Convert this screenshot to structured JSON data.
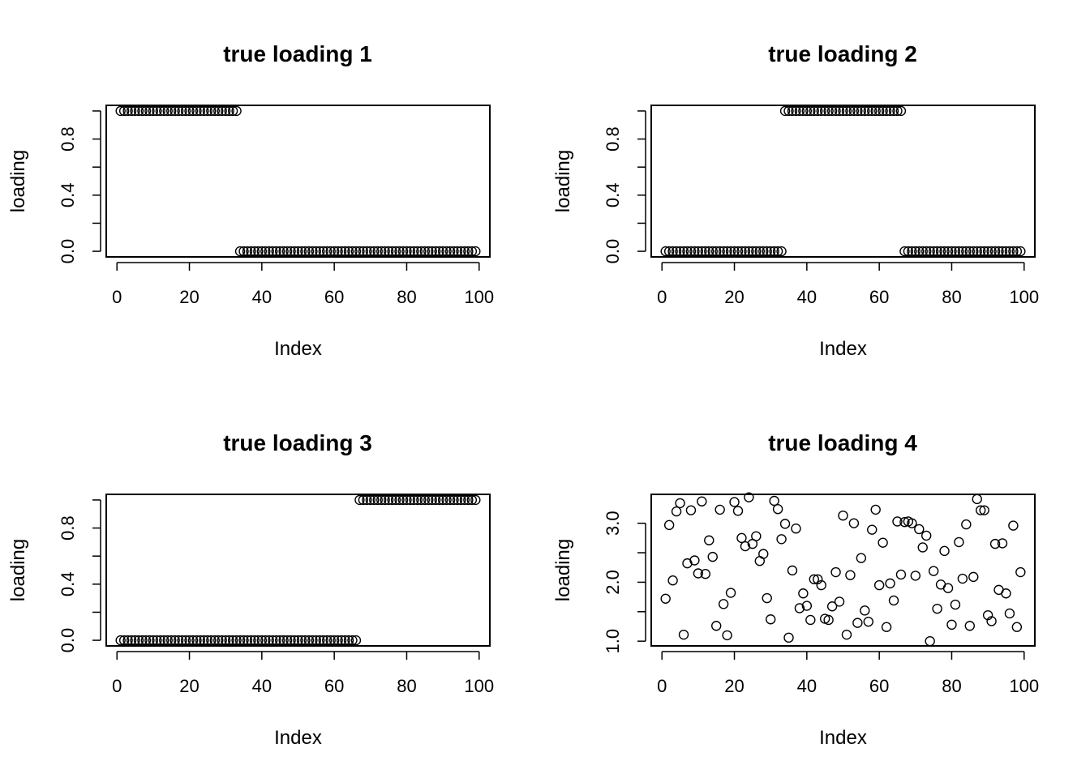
{
  "chart_data": [
    {
      "type": "scatter",
      "title": "true loading 1",
      "xlabel": "Index",
      "ylabel": "loading",
      "xlim": [
        -2.96,
        102.96
      ],
      "ylim": [
        -0.04,
        1.04
      ],
      "x_ticks": [
        "0",
        "20",
        "40",
        "60",
        "80",
        "100"
      ],
      "y_ticks": [
        "0.0",
        "0.4",
        "0.8"
      ],
      "y_tick_values": [
        0.0,
        0.2,
        0.4,
        0.6,
        0.8,
        1.0
      ],
      "segments": [
        {
          "from": 1,
          "to": 33,
          "value": 1
        },
        {
          "from": 34,
          "to": 99,
          "value": 0
        }
      ]
    },
    {
      "type": "scatter",
      "title": "true loading 2",
      "xlabel": "Index",
      "ylabel": "loading",
      "xlim": [
        -2.96,
        102.96
      ],
      "ylim": [
        -0.04,
        1.04
      ],
      "x_ticks": [
        "0",
        "20",
        "40",
        "60",
        "80",
        "100"
      ],
      "y_ticks": [
        "0.0",
        "0.4",
        "0.8"
      ],
      "y_tick_values": [
        0.0,
        0.2,
        0.4,
        0.6,
        0.8,
        1.0
      ],
      "segments": [
        {
          "from": 1,
          "to": 33,
          "value": 0
        },
        {
          "from": 34,
          "to": 66,
          "value": 1
        },
        {
          "from": 67,
          "to": 99,
          "value": 0
        }
      ]
    },
    {
      "type": "scatter",
      "title": "true loading 3",
      "xlabel": "Index",
      "ylabel": "loading",
      "xlim": [
        -2.96,
        102.96
      ],
      "ylim": [
        -0.04,
        1.04
      ],
      "x_ticks": [
        "0",
        "20",
        "40",
        "60",
        "80",
        "100"
      ],
      "y_ticks": [
        "0.0",
        "0.4",
        "0.8"
      ],
      "y_tick_values": [
        0.0,
        0.2,
        0.4,
        0.6,
        0.8,
        1.0
      ],
      "segments": [
        {
          "from": 1,
          "to": 66,
          "value": 0
        },
        {
          "from": 67,
          "to": 99,
          "value": 1
        }
      ]
    },
    {
      "type": "scatter",
      "title": "true loading 4",
      "xlabel": "Index",
      "ylabel": "loading",
      "xlim": [
        -2.96,
        102.96
      ],
      "ylim": [
        0.92,
        3.49
      ],
      "x_ticks": [
        "0",
        "20",
        "40",
        "60",
        "80",
        "100"
      ],
      "y_ticks": [
        "1.0",
        "2.0",
        "3.0"
      ],
      "y_tick_values": [
        1.0,
        1.5,
        2.0,
        2.5,
        3.0
      ],
      "x": [
        1,
        2,
        3,
        4,
        5,
        6,
        7,
        8,
        9,
        10,
        11,
        12,
        13,
        14,
        15,
        16,
        17,
        18,
        19,
        20,
        21,
        22,
        23,
        24,
        25,
        26,
        27,
        28,
        29,
        30,
        31,
        32,
        33,
        34,
        35,
        36,
        37,
        38,
        39,
        40,
        41,
        42,
        43,
        44,
        45,
        46,
        47,
        48,
        49,
        50,
        51,
        52,
        53,
        54,
        55,
        56,
        57,
        58,
        59,
        60,
        61,
        62,
        63,
        64,
        65,
        66,
        67,
        68,
        69,
        70,
        71,
        72,
        73,
        74,
        75,
        76,
        77,
        78,
        79,
        80,
        81,
        82,
        83,
        84,
        85,
        86,
        87,
        88,
        89,
        90,
        91,
        92,
        93,
        94,
        95,
        96,
        97,
        98,
        99
      ],
      "y": [
        1.72,
        2.97,
        2.03,
        3.2,
        3.34,
        1.11,
        2.32,
        3.22,
        2.37,
        2.15,
        3.37,
        2.14,
        2.71,
        2.43,
        1.26,
        3.23,
        1.63,
        1.1,
        1.82,
        3.36,
        3.21,
        2.75,
        2.61,
        3.44,
        2.65,
        2.78,
        2.36,
        2.48,
        1.73,
        1.37,
        3.38,
        3.24,
        2.73,
        2.99,
        1.06,
        2.2,
        2.91,
        1.56,
        1.81,
        1.6,
        1.36,
        2.05,
        2.05,
        1.95,
        1.38,
        1.36,
        1.59,
        2.17,
        1.67,
        3.13,
        1.11,
        2.12,
        3.0,
        1.31,
        2.41,
        1.52,
        1.33,
        2.89,
        3.23,
        1.95,
        2.67,
        1.24,
        1.98,
        1.69,
        3.03,
        2.13,
        3.02,
        3.03,
        3.0,
        2.11,
        2.9,
        2.59,
        2.79,
        1.0,
        2.19,
        1.55,
        1.96,
        2.53,
        1.9,
        1.28,
        1.62,
        2.68,
        2.06,
        2.98,
        1.26,
        2.09,
        3.41,
        3.22,
        3.22,
        1.44,
        1.34,
        2.65,
        1.87,
        2.66,
        1.81,
        1.47,
        2.96,
        1.24,
        2.17
      ]
    }
  ]
}
